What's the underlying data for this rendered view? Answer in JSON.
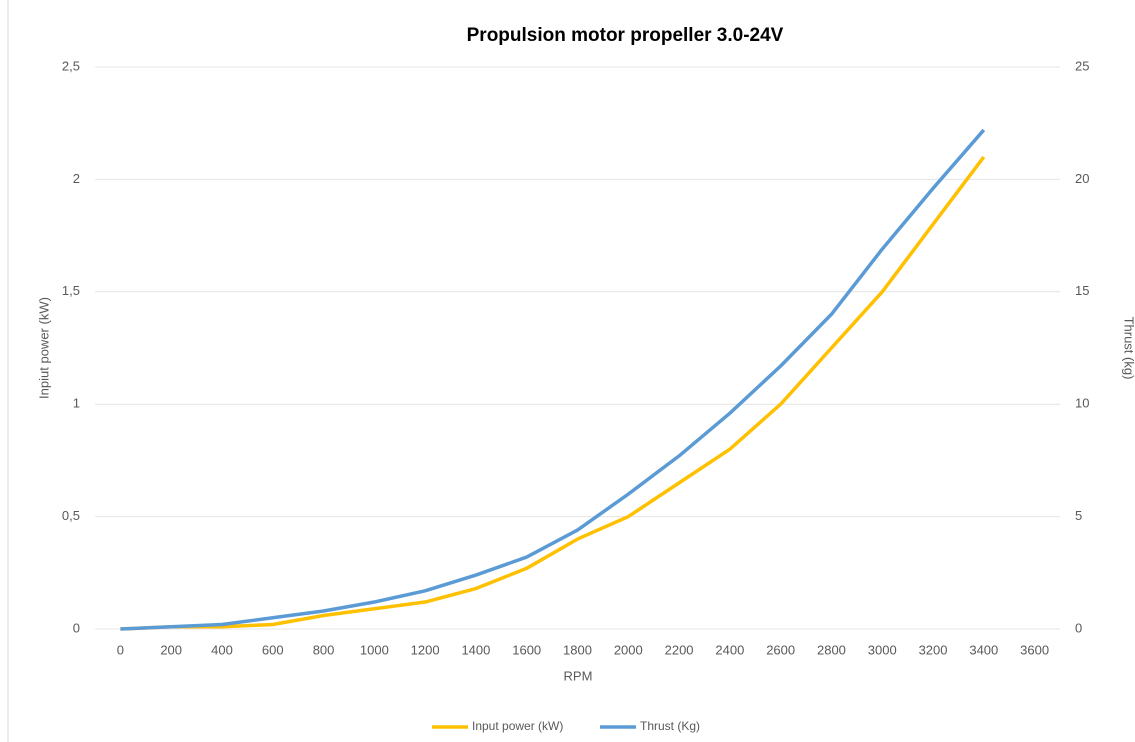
{
  "chart_data": {
    "type": "line",
    "title": "Propulsion motor propeller 3.0-24V",
    "x_label": "RPM",
    "y_label": "Inpiut power (kW)",
    "y2_label": "Thrust (kg)",
    "x": [
      0,
      200,
      400,
      600,
      800,
      1000,
      1200,
      1400,
      1600,
      1800,
      2000,
      2200,
      2400,
      2600,
      2800,
      3000,
      3200,
      3400
    ],
    "xlim": [
      -100,
      3700
    ],
    "xticks": [
      0,
      200,
      400,
      600,
      800,
      1000,
      1200,
      1400,
      1600,
      1800,
      2000,
      2200,
      2400,
      2600,
      2800,
      3000,
      3200,
      3400,
      3600
    ],
    "ylim": [
      0,
      2.5
    ],
    "yticks": [
      0,
      {
        "value": 0.5,
        "label": "0,5"
      },
      1,
      {
        "value": 1.5,
        "label": "1,5"
      },
      2,
      {
        "value": 2.5,
        "label": "2,5"
      }
    ],
    "y2lim": [
      0,
      25
    ],
    "y2ticks": [
      0,
      5,
      10,
      15,
      20,
      25
    ],
    "grid": true,
    "legend": "bottom",
    "series": [
      {
        "name": "Input power (kW)",
        "color": "#FFC000",
        "values": [
          0,
          0.01,
          0.01,
          0.02,
          0.06,
          0.09,
          0.12,
          0.18,
          0.27,
          0.4,
          0.5,
          0.65,
          0.8,
          1.0,
          1.25,
          1.5,
          1.8,
          2.1
        ]
      },
      {
        "name": "Thrust (Kg)",
        "color": "#5B9BD5",
        "axis": "y2",
        "values": [
          0,
          0.1,
          0.2,
          0.5,
          0.8,
          1.2,
          1.7,
          2.4,
          3.2,
          4.4,
          6.0,
          7.7,
          9.6,
          11.7,
          14.0,
          16.9,
          19.6,
          22.2
        ]
      }
    ]
  }
}
